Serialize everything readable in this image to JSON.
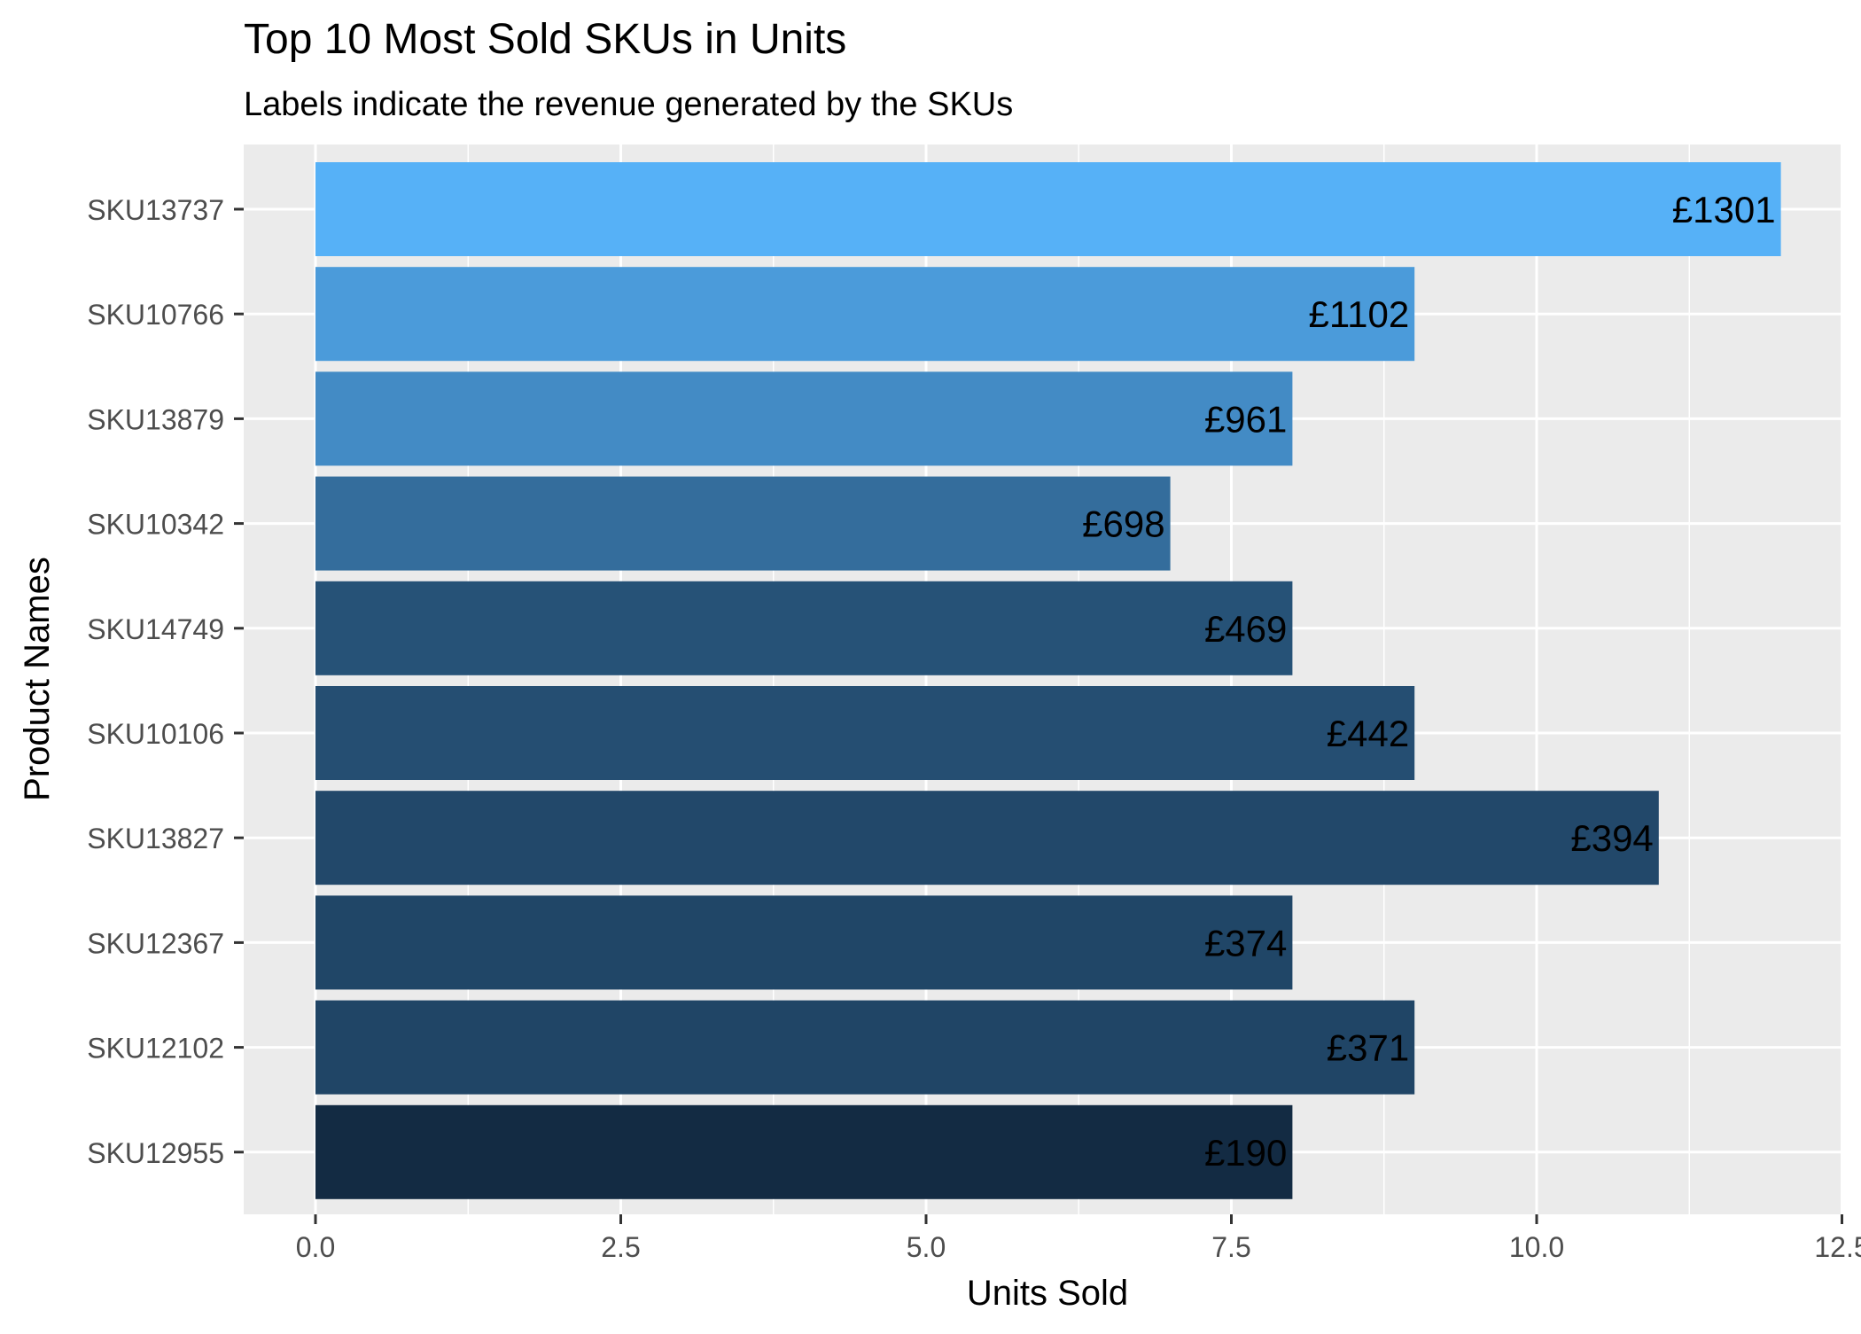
{
  "chart_data": {
    "type": "bar",
    "orientation": "horizontal",
    "title": "Top 10 Most Sold SKUs in Units",
    "subtitle": "Labels indicate the revenue generated by the SKUs",
    "xlabel": "Units Sold",
    "ylabel": "Product Names",
    "xlim": [
      0,
      12.5
    ],
    "x_ticks": [
      "0.0",
      "2.5",
      "5.0",
      "7.5",
      "10.0",
      "12.5"
    ],
    "x_tick_values": [
      0,
      2.5,
      5,
      7.5,
      10,
      12.5
    ],
    "grid": true,
    "categories": [
      "SKU13737",
      "SKU10766",
      "SKU13879",
      "SKU10342",
      "SKU14749",
      "SKU10106",
      "SKU13827",
      "SKU12367",
      "SKU12102",
      "SKU12955"
    ],
    "values": [
      12,
      9,
      8,
      7,
      8,
      9,
      11,
      8,
      9,
      8
    ],
    "revenue_labels": [
      "£1301",
      "£1102",
      "£961",
      "£698",
      "£469",
      "£442",
      "£394",
      "£374",
      "£371",
      "£190"
    ],
    "revenue": [
      1301,
      1102,
      961,
      698,
      469,
      442,
      394,
      374,
      371,
      190
    ],
    "fill_gradient": {
      "low": "#132B43",
      "high": "#56B1F7"
    },
    "colors": {
      "panel_background": "#EBEBEB",
      "grid": "#FFFFFF",
      "axis_text": "#4D4D4D",
      "tick": "#333333",
      "text": "#000000"
    }
  }
}
